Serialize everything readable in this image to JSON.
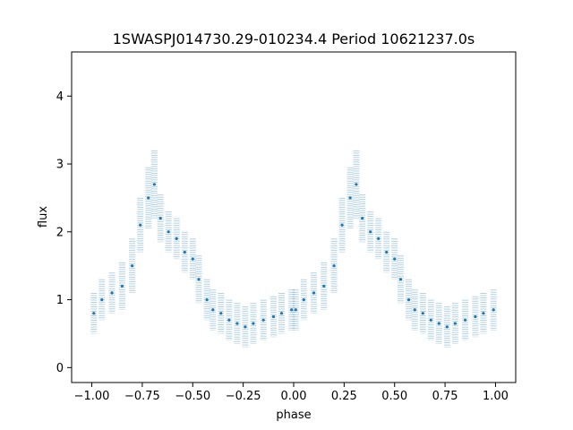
{
  "chart_data": {
    "type": "scatter",
    "title": "1SWASPJ014730.29-010234.4 Period 10621237.0s",
    "xlabel": "phase",
    "ylabel": "flux",
    "xlim": [
      -1.1,
      1.1
    ],
    "ylim": [
      -0.22,
      4.65
    ],
    "xticks": [
      -1.0,
      -0.75,
      -0.5,
      -0.25,
      0.0,
      0.25,
      0.5,
      0.75,
      1.0
    ],
    "xtick_labels": [
      "−1.00",
      "−0.75",
      "−0.50",
      "−0.25",
      "0.00",
      "0.25",
      "0.50",
      "0.75",
      "1.00"
    ],
    "yticks": [
      0,
      1,
      2,
      3,
      4
    ],
    "ytick_labels": [
      "0",
      "1",
      "2",
      "3",
      "4"
    ],
    "grid": false,
    "legend": "none",
    "point_color": "#1f77b4",
    "series": [
      {
        "x": [
          -0.99,
          -0.95,
          -0.9,
          -0.85,
          -0.8,
          -0.76,
          -0.72,
          -0.69,
          -0.66,
          -0.62,
          -0.58,
          -0.54,
          -0.5,
          -0.47,
          -0.43,
          -0.4,
          -0.36,
          -0.32,
          -0.28,
          -0.24,
          -0.2,
          -0.15,
          -0.1,
          -0.06,
          -0.01,
          0.01,
          0.05,
          0.1,
          0.15,
          0.2,
          0.24,
          0.28,
          0.31,
          0.34,
          0.38,
          0.42,
          0.46,
          0.5,
          0.53,
          0.57,
          0.6,
          0.64,
          0.68,
          0.72,
          0.76,
          0.8,
          0.85,
          0.9,
          0.94,
          0.99
        ],
        "y": [
          0.8,
          1.0,
          1.1,
          1.2,
          1.5,
          2.1,
          2.5,
          2.7,
          2.2,
          2.0,
          1.9,
          1.7,
          1.6,
          1.3,
          1.0,
          0.85,
          0.8,
          0.7,
          0.65,
          0.6,
          0.65,
          0.7,
          0.75,
          0.8,
          0.85,
          0.85,
          1.0,
          1.1,
          1.2,
          1.5,
          2.1,
          2.5,
          2.7,
          2.2,
          2.0,
          1.9,
          1.7,
          1.6,
          1.3,
          1.0,
          0.85,
          0.8,
          0.7,
          0.65,
          0.6,
          0.65,
          0.7,
          0.75,
          0.8,
          0.85
        ],
        "y_spread": [
          0.3,
          0.3,
          0.3,
          0.35,
          0.4,
          0.4,
          0.45,
          0.5,
          0.35,
          0.3,
          0.3,
          0.3,
          0.3,
          0.35,
          0.3,
          0.3,
          0.3,
          0.3,
          0.3,
          0.3,
          0.3,
          0.3,
          0.3,
          0.3,
          0.3,
          0.3,
          0.3,
          0.3,
          0.35,
          0.4,
          0.4,
          0.45,
          0.5,
          0.35,
          0.3,
          0.3,
          0.3,
          0.3,
          0.35,
          0.3,
          0.3,
          0.3,
          0.3,
          0.3,
          0.3,
          0.3,
          0.3,
          0.3,
          0.3,
          0.3
        ]
      }
    ]
  }
}
